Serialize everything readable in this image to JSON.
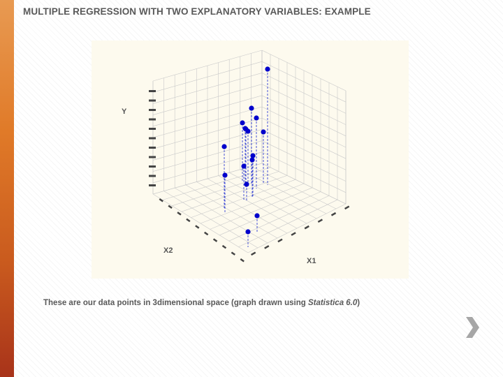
{
  "slide": {
    "title": "MULTIPLE REGRESSION WITH TWO EXPLANATORY VARIABLES: EXAMPLE",
    "caption_prefix": "These are our data points in 3dimensional space (graph drawn using ",
    "caption_software": "Statistica 6.0",
    "caption_suffix": ")",
    "accent_color": "#e07a28"
  },
  "chart_data": {
    "type": "scatter",
    "subtype": "3d-scatter-with-drop-lines",
    "axes": {
      "y_label": "Y",
      "x1_label": "X1",
      "x2_label": "X2"
    },
    "grid": true,
    "point_color": "#0000cc",
    "points_count": 16
  },
  "navigation": {
    "next_icon": "chevron-right-icon"
  }
}
